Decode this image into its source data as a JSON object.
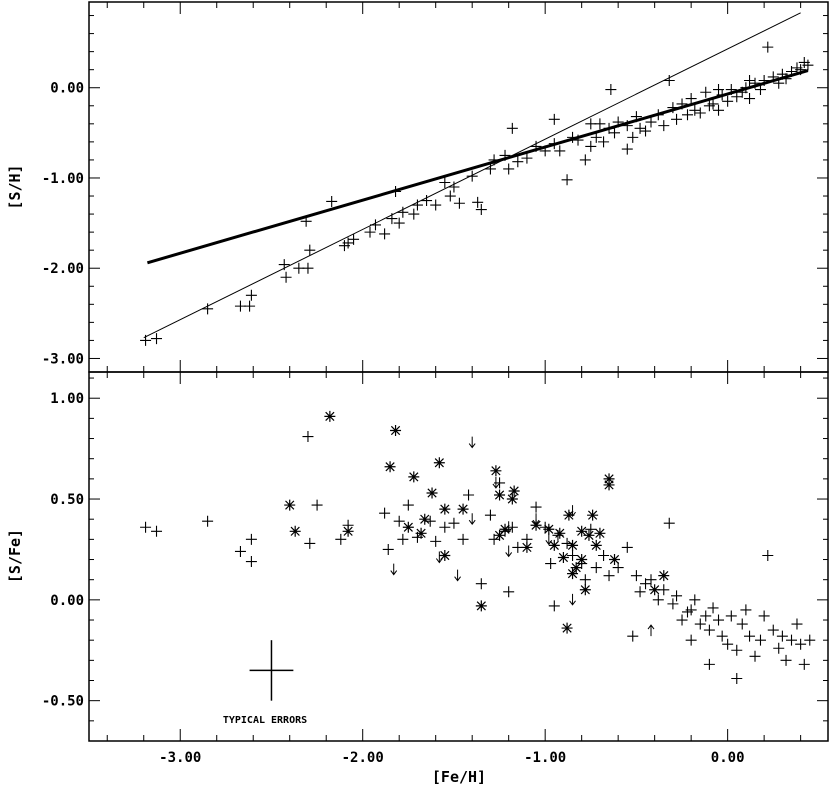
{
  "chart_data": [
    {
      "type": "scatter",
      "panel": "top",
      "title": "",
      "xlabel": "[Fe/H]",
      "ylabel": "[S/H]",
      "xlim": [
        -3.5,
        0.55
      ],
      "ylim": [
        -3.15,
        0.95
      ],
      "yticks": [
        0.0,
        -1.0,
        -2.0,
        -3.0
      ],
      "ytick_labels": [
        "0.00",
        "-1.00",
        "-2.00",
        "-3.00"
      ],
      "series": [
        {
          "marker": "plus",
          "points": [
            [
              -3.19,
              -2.8
            ],
            [
              -3.13,
              -2.78
            ],
            [
              -2.85,
              -2.45
            ],
            [
              -2.67,
              -2.42
            ],
            [
              -2.62,
              -2.42
            ],
            [
              -2.61,
              -2.3
            ],
            [
              -2.42,
              -2.1
            ],
            [
              -2.43,
              -1.96
            ],
            [
              -2.35,
              -2.0
            ],
            [
              -2.3,
              -2.0
            ],
            [
              -2.29,
              -1.8
            ],
            [
              -2.31,
              -1.48
            ],
            [
              -2.17,
              -1.26
            ],
            [
              -2.1,
              -1.75
            ],
            [
              -2.08,
              -1.72
            ],
            [
              -2.05,
              -1.68
            ],
            [
              -1.96,
              -1.6
            ],
            [
              -1.93,
              -1.52
            ],
            [
              -1.88,
              -1.62
            ],
            [
              -1.84,
              -1.45
            ],
            [
              -1.8,
              -1.5
            ],
            [
              -1.78,
              -1.38
            ],
            [
              -1.82,
              -1.15
            ],
            [
              -1.72,
              -1.4
            ],
            [
              -1.7,
              -1.3
            ],
            [
              -1.65,
              -1.25
            ],
            [
              -1.6,
              -1.3
            ],
            [
              -1.55,
              -1.05
            ],
            [
              -1.52,
              -1.2
            ],
            [
              -1.5,
              -1.1
            ],
            [
              -1.47,
              -1.28
            ],
            [
              -1.4,
              -0.98
            ],
            [
              -1.37,
              -1.27
            ],
            [
              -1.35,
              -1.35
            ],
            [
              -1.3,
              -0.9
            ],
            [
              -1.28,
              -0.8
            ],
            [
              -1.22,
              -0.75
            ],
            [
              -1.2,
              -0.9
            ],
            [
              -1.18,
              -0.45
            ],
            [
              -1.15,
              -0.82
            ],
            [
              -1.1,
              -0.78
            ],
            [
              -1.05,
              -0.65
            ],
            [
              -1.0,
              -0.7
            ],
            [
              -0.95,
              -0.62
            ],
            [
              -0.92,
              -0.7
            ],
            [
              -0.88,
              -1.02
            ],
            [
              -0.85,
              -0.55
            ],
            [
              -0.82,
              -0.58
            ],
            [
              -0.78,
              -0.8
            ],
            [
              -0.75,
              -0.65
            ],
            [
              -0.72,
              -0.55
            ],
            [
              -0.7,
              -0.4
            ],
            [
              -0.68,
              -0.6
            ],
            [
              -0.65,
              -0.45
            ],
            [
              -0.62,
              -0.5
            ],
            [
              -0.6,
              -0.38
            ],
            [
              -0.55,
              -0.42
            ],
            [
              -0.52,
              -0.55
            ],
            [
              -0.5,
              -0.32
            ],
            [
              -0.48,
              -0.45
            ],
            [
              -0.45,
              -0.48
            ],
            [
              -0.42,
              -0.38
            ],
            [
              -0.38,
              -0.3
            ],
            [
              -0.35,
              -0.42
            ],
            [
              -0.3,
              -0.22
            ],
            [
              -0.28,
              -0.35
            ],
            [
              -0.25,
              -0.18
            ],
            [
              -0.22,
              -0.3
            ],
            [
              -0.2,
              -0.12
            ],
            [
              -0.18,
              -0.25
            ],
            [
              -0.15,
              -0.28
            ],
            [
              -0.12,
              -0.05
            ],
            [
              -0.1,
              -0.2
            ],
            [
              -0.08,
              -0.18
            ],
            [
              -0.05,
              -0.25
            ],
            [
              -0.03,
              -0.08
            ],
            [
              0.0,
              -0.15
            ],
            [
              0.02,
              -0.02
            ],
            [
              0.05,
              -0.1
            ],
            [
              0.08,
              -0.05
            ],
            [
              0.1,
              0.0
            ],
            [
              0.12,
              -0.12
            ],
            [
              0.15,
              0.05
            ],
            [
              0.18,
              -0.02
            ],
            [
              0.2,
              0.08
            ],
            [
              0.22,
              0.45
            ],
            [
              0.25,
              0.12
            ],
            [
              0.28,
              0.05
            ],
            [
              0.3,
              0.15
            ],
            [
              0.32,
              0.1
            ],
            [
              0.35,
              0.18
            ],
            [
              0.38,
              0.22
            ],
            [
              0.4,
              0.2
            ],
            [
              0.42,
              0.28
            ],
            [
              0.44,
              0.25
            ],
            [
              -0.32,
              0.08
            ],
            [
              -0.55,
              -0.68
            ],
            [
              -0.64,
              -0.02
            ],
            [
              -0.05,
              -0.02
            ],
            [
              0.12,
              0.08
            ],
            [
              -0.95,
              -0.35
            ],
            [
              -0.75,
              -0.4
            ]
          ]
        }
      ],
      "lines": [
        {
          "name": "",
          "weight": "thick",
          "x": [
            -3.18,
            0.44
          ],
          "y": [
            -1.94,
            0.19
          ]
        },
        {
          "name": "",
          "weight": "thin",
          "x": [
            -3.2,
            0.4
          ],
          "y": [
            -2.77,
            0.83
          ]
        }
      ]
    },
    {
      "type": "scatter",
      "panel": "bottom",
      "title": "",
      "xlabel": "[Fe/H]",
      "ylabel": "[S/Fe]",
      "xlim": [
        -3.5,
        0.55
      ],
      "ylim": [
        -0.7,
        1.13
      ],
      "xticks": [
        -3.0,
        -2.0,
        -1.0,
        0.0
      ],
      "xtick_labels": [
        "-3.00",
        "-2.00",
        "-1.00",
        "0.00"
      ],
      "yticks": [
        1.0,
        0.5,
        0.0,
        -0.5
      ],
      "ytick_labels": [
        "1.00",
        "0.50",
        "0.00",
        "-0.50"
      ],
      "series": [
        {
          "marker": "plus",
          "points": [
            [
              -3.19,
              0.36
            ],
            [
              -3.13,
              0.34
            ],
            [
              -2.85,
              0.39
            ],
            [
              -2.67,
              0.24
            ],
            [
              -2.61,
              0.19
            ],
            [
              -2.61,
              0.3
            ],
            [
              -2.3,
              0.81
            ],
            [
              -2.29,
              0.28
            ],
            [
              -2.25,
              0.47
            ],
            [
              -2.08,
              0.37
            ],
            [
              -2.12,
              0.3
            ],
            [
              -1.88,
              0.43
            ],
            [
              -1.86,
              0.25
            ],
            [
              -1.8,
              0.39
            ],
            [
              -1.78,
              0.3
            ],
            [
              -1.75,
              0.47
            ],
            [
              -1.7,
              0.31
            ],
            [
              -1.63,
              0.39
            ],
            [
              -1.6,
              0.29
            ],
            [
              -1.55,
              0.36
            ],
            [
              -1.5,
              0.38
            ],
            [
              -1.45,
              0.3
            ],
            [
              -1.42,
              0.52
            ],
            [
              -1.35,
              0.08
            ],
            [
              -1.3,
              0.42
            ],
            [
              -1.28,
              0.3
            ],
            [
              -1.25,
              0.58
            ],
            [
              -1.22,
              0.34
            ],
            [
              -1.18,
              0.36
            ],
            [
              -1.15,
              0.26
            ],
            [
              -1.1,
              0.3
            ],
            [
              -1.05,
              0.46
            ],
            [
              -1.0,
              0.36
            ],
            [
              -0.97,
              0.18
            ],
            [
              -0.93,
              0.32
            ],
            [
              -0.88,
              0.28
            ],
            [
              -0.85,
              0.22
            ],
            [
              -0.8,
              0.18
            ],
            [
              -0.78,
              0.1
            ],
            [
              -0.75,
              0.35
            ],
            [
              -0.72,
              0.16
            ],
            [
              -0.68,
              0.22
            ],
            [
              -0.65,
              0.12
            ],
            [
              -0.6,
              0.16
            ],
            [
              -0.55,
              0.26
            ],
            [
              -0.52,
              -0.18
            ],
            [
              -0.5,
              0.12
            ],
            [
              -0.48,
              0.04
            ],
            [
              -0.45,
              0.08
            ],
            [
              -0.42,
              0.1
            ],
            [
              -0.38,
              0.0
            ],
            [
              -0.35,
              0.05
            ],
            [
              -0.32,
              0.38
            ],
            [
              -0.3,
              -0.02
            ],
            [
              -0.28,
              0.02
            ],
            [
              -0.25,
              -0.1
            ],
            [
              -0.22,
              -0.06
            ],
            [
              -0.2,
              -0.05
            ],
            [
              -0.18,
              0.0
            ],
            [
              -0.15,
              -0.12
            ],
            [
              -0.12,
              -0.08
            ],
            [
              -0.1,
              -0.15
            ],
            [
              -0.08,
              -0.04
            ],
            [
              -0.05,
              -0.1
            ],
            [
              -0.03,
              -0.18
            ],
            [
              0.0,
              -0.22
            ],
            [
              0.02,
              -0.08
            ],
            [
              0.05,
              -0.25
            ],
            [
              0.08,
              -0.12
            ],
            [
              0.1,
              -0.05
            ],
            [
              0.12,
              -0.18
            ],
            [
              0.15,
              -0.28
            ],
            [
              0.18,
              -0.2
            ],
            [
              0.2,
              -0.08
            ],
            [
              0.22,
              0.22
            ],
            [
              0.25,
              -0.15
            ],
            [
              0.28,
              -0.24
            ],
            [
              0.3,
              -0.18
            ],
            [
              0.32,
              -0.3
            ],
            [
              0.35,
              -0.2
            ],
            [
              0.38,
              -0.12
            ],
            [
              0.4,
              -0.22
            ],
            [
              0.42,
              -0.32
            ],
            [
              0.45,
              -0.2
            ],
            [
              -0.95,
              -0.03
            ],
            [
              -1.2,
              0.04
            ],
            [
              0.05,
              -0.39
            ],
            [
              -0.1,
              -0.32
            ],
            [
              -0.2,
              -0.2
            ]
          ]
        },
        {
          "marker": "asterisk",
          "points": [
            [
              -2.18,
              0.91
            ],
            [
              -1.82,
              0.84
            ],
            [
              -1.85,
              0.66
            ],
            [
              -2.4,
              0.47
            ],
            [
              -2.37,
              0.34
            ],
            [
              -2.08,
              0.34
            ],
            [
              -1.72,
              0.61
            ],
            [
              -1.66,
              0.4
            ],
            [
              -1.62,
              0.53
            ],
            [
              -1.58,
              0.68
            ],
            [
              -1.55,
              0.45
            ],
            [
              -1.55,
              0.22
            ],
            [
              -1.75,
              0.36
            ],
            [
              -1.68,
              0.33
            ],
            [
              -1.45,
              0.45
            ],
            [
              -1.35,
              -0.03
            ],
            [
              -1.27,
              0.64
            ],
            [
              -1.25,
              0.52
            ],
            [
              -1.22,
              0.35
            ],
            [
              -1.18,
              0.5
            ],
            [
              -1.17,
              0.54
            ],
            [
              -1.1,
              0.26
            ],
            [
              -1.05,
              0.37
            ],
            [
              -0.98,
              0.35
            ],
            [
              -0.92,
              0.33
            ],
            [
              -0.9,
              0.21
            ],
            [
              -0.87,
              0.42
            ],
            [
              -0.85,
              0.27
            ],
            [
              -0.83,
              0.16
            ],
            [
              -0.8,
              0.34
            ],
            [
              -0.78,
              0.05
            ],
            [
              -0.76,
              0.32
            ],
            [
              -0.74,
              0.42
            ],
            [
              -0.72,
              0.27
            ],
            [
              -0.7,
              0.33
            ],
            [
              -0.65,
              0.57
            ],
            [
              -0.65,
              0.6
            ],
            [
              -0.62,
              0.2
            ],
            [
              -0.88,
              -0.14
            ],
            [
              -0.85,
              0.13
            ],
            [
              -0.4,
              0.05
            ],
            [
              -0.35,
              0.12
            ],
            [
              -1.25,
              0.32
            ],
            [
              -0.95,
              0.27
            ],
            [
              -0.8,
              0.2
            ]
          ]
        },
        {
          "marker": "arrow-down",
          "points": [
            [
              -1.4,
              0.78
            ],
            [
              -1.27,
              0.58
            ],
            [
              -1.4,
              0.4
            ],
            [
              -1.2,
              0.36
            ],
            [
              -1.05,
              0.4
            ],
            [
              -1.2,
              0.24
            ],
            [
              -1.58,
              0.21
            ],
            [
              -1.83,
              0.15
            ],
            [
              -1.48,
              0.12
            ],
            [
              -0.98,
              0.3
            ],
            [
              -0.85,
              0.44
            ],
            [
              -0.85,
              0.0
            ]
          ]
        },
        {
          "marker": "arrow-up",
          "points": [
            [
              -0.42,
              -0.15
            ]
          ]
        }
      ],
      "annotations": [
        {
          "text": "TYPICAL ERRORS",
          "x": -2.5,
          "y": -0.35,
          "x_error": 0.12,
          "y_error": 0.15
        }
      ]
    }
  ]
}
